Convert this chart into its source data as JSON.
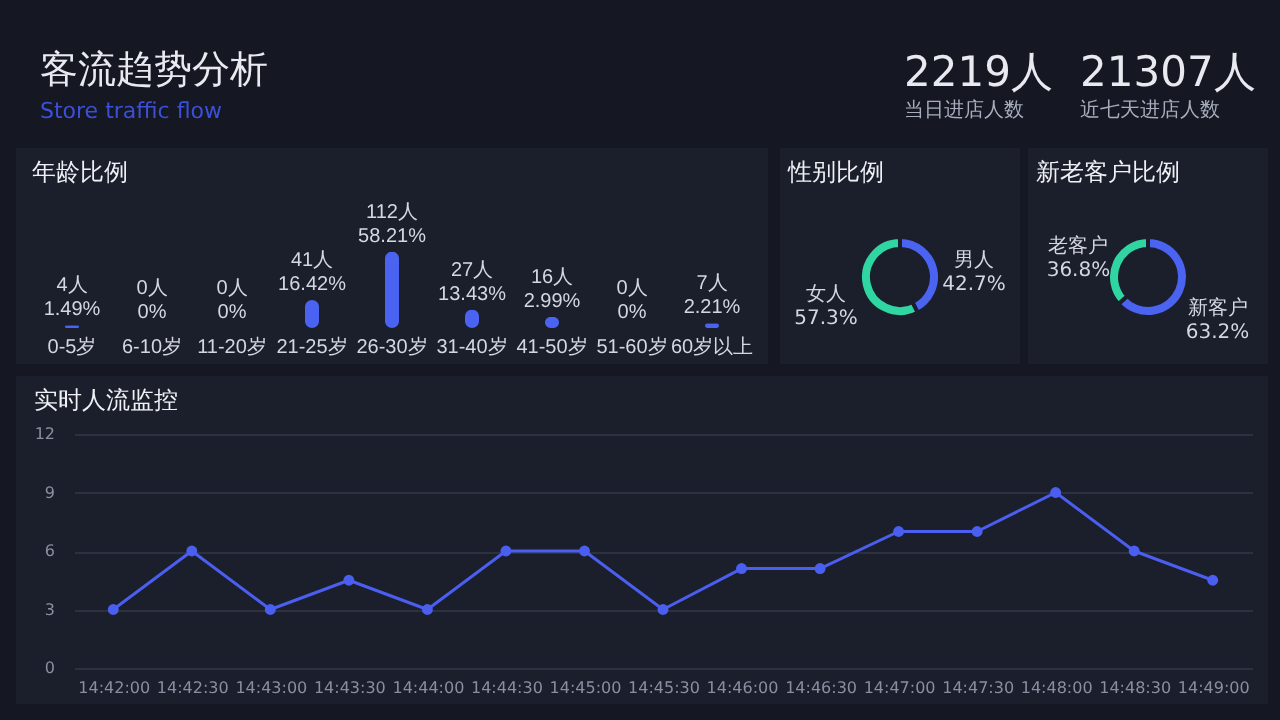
{
  "chart_data": [
    {
      "type": "other",
      "title": "客流趋势分析",
      "subtitle": "Store traffic flow",
      "annotations": [
        "2219人",
        "当日进店人数",
        "21307人",
        "近七天进店人数"
      ]
    },
    {
      "type": "bar",
      "title": "年龄比例",
      "categories": [
        "0-5岁",
        "6-10岁",
        "11-20岁",
        "21-25岁",
        "26-30岁",
        "31-40岁",
        "41-50岁",
        "51-60岁",
        "60岁以上"
      ],
      "values": [
        4,
        0,
        0,
        41,
        112,
        27,
        16,
        0,
        7
      ],
      "value_labels": [
        "4人",
        "0人",
        "0人",
        "41人",
        "112人",
        "27人",
        "16人",
        "0人",
        "7人"
      ],
      "color": "#4a63f0",
      "annotations": [
        {
          "text": "1.49%",
          "x": "0-5岁",
          "y": 4
        },
        {
          "text": "0%",
          "x": "6-10岁",
          "y": 0
        },
        {
          "text": "0%",
          "x": "11-20岁",
          "y": 0
        },
        {
          "text": "16.42%",
          "x": "21-25岁",
          "y": 41
        },
        {
          "text": "58.21%",
          "x": "26-30岁",
          "y": 112
        },
        {
          "text": "13.43%",
          "x": "31-40岁",
          "y": 27
        },
        {
          "text": "2.99%",
          "x": "41-50岁",
          "y": 16
        },
        {
          "text": "0%",
          "x": "51-60岁",
          "y": 0
        },
        {
          "text": "2.21%",
          "x": "60岁以上",
          "y": 7
        }
      ]
    },
    {
      "type": "donut",
      "title": "性别比例",
      "categories": [
        "男人",
        "女人"
      ],
      "values": [
        42.7,
        57.3
      ],
      "value_labels": [
        "42.7%",
        "57.3%"
      ],
      "colors": [
        "#4a63f0",
        "#2fd6a2"
      ]
    },
    {
      "type": "donut",
      "title": "新老客户比例",
      "categories": [
        "新客户",
        "老客户"
      ],
      "values": [
        63.2,
        36.8
      ],
      "value_labels": [
        "63.2%",
        "36.8%"
      ],
      "colors": [
        "#4a63f0",
        "#2fd6a2"
      ]
    },
    {
      "type": "line",
      "title": "实时人流监控",
      "categories": [
        "14:42:00",
        "14:42:30",
        "14:43:00",
        "14:43:30",
        "14:44:00",
        "14:44:30",
        "14:45:00",
        "14:45:30",
        "14:46:00",
        "14:46:30",
        "14:47:00",
        "14:47:30",
        "14:48:00",
        "14:48:30",
        "14:49:00"
      ],
      "values": [
        3,
        6,
        3,
        4.5,
        3,
        6,
        6,
        3,
        5.1,
        5.1,
        7,
        7,
        9,
        6,
        4.5
      ],
      "color": "#4a5ef0",
      "ylim": [
        0,
        12
      ],
      "yticks": [
        0,
        3,
        6,
        9,
        12
      ],
      "grid": "y",
      "marker": "circle"
    }
  ]
}
